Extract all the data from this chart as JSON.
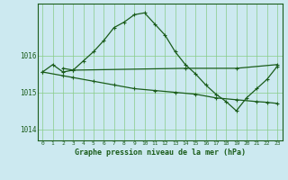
{
  "bg_color": "#cce9f0",
  "line_color": "#1a5c1a",
  "grid_color": "#88cc88",
  "xlabel": "Graphe pression niveau de la mer (hPa)",
  "xlim": [
    -0.5,
    23.5
  ],
  "ylim": [
    1013.7,
    1017.4
  ],
  "yticks": [
    1014,
    1015,
    1016
  ],
  "xticks": [
    0,
    1,
    2,
    3,
    4,
    5,
    6,
    7,
    8,
    9,
    10,
    11,
    12,
    13,
    14,
    15,
    16,
    17,
    18,
    19,
    20,
    21,
    22,
    23
  ],
  "series1_x": [
    0,
    1,
    2,
    3,
    4,
    5,
    6,
    7,
    8,
    9,
    10,
    11,
    12,
    13,
    14,
    15,
    16,
    17,
    18,
    19,
    20,
    21,
    22,
    23
  ],
  "series1_y": [
    1015.55,
    1015.75,
    1015.55,
    1015.6,
    1015.85,
    1016.1,
    1016.4,
    1016.75,
    1016.9,
    1017.1,
    1017.15,
    1016.85,
    1016.55,
    1016.1,
    1015.75,
    1015.5,
    1015.2,
    1014.95,
    1014.75,
    1014.5,
    1014.85,
    1015.1,
    1015.35,
    1015.7
  ],
  "series2_x": [
    2,
    3,
    14,
    19,
    23
  ],
  "series2_y": [
    1015.65,
    1015.6,
    1015.65,
    1015.65,
    1015.75
  ],
  "series3_x": [
    0,
    2,
    3,
    5,
    7,
    9,
    11,
    13,
    15,
    17,
    19,
    21,
    22,
    23
  ],
  "series3_y": [
    1015.55,
    1015.45,
    1015.4,
    1015.3,
    1015.2,
    1015.1,
    1015.05,
    1015.0,
    1014.95,
    1014.85,
    1014.8,
    1014.75,
    1014.73,
    1014.7
  ]
}
